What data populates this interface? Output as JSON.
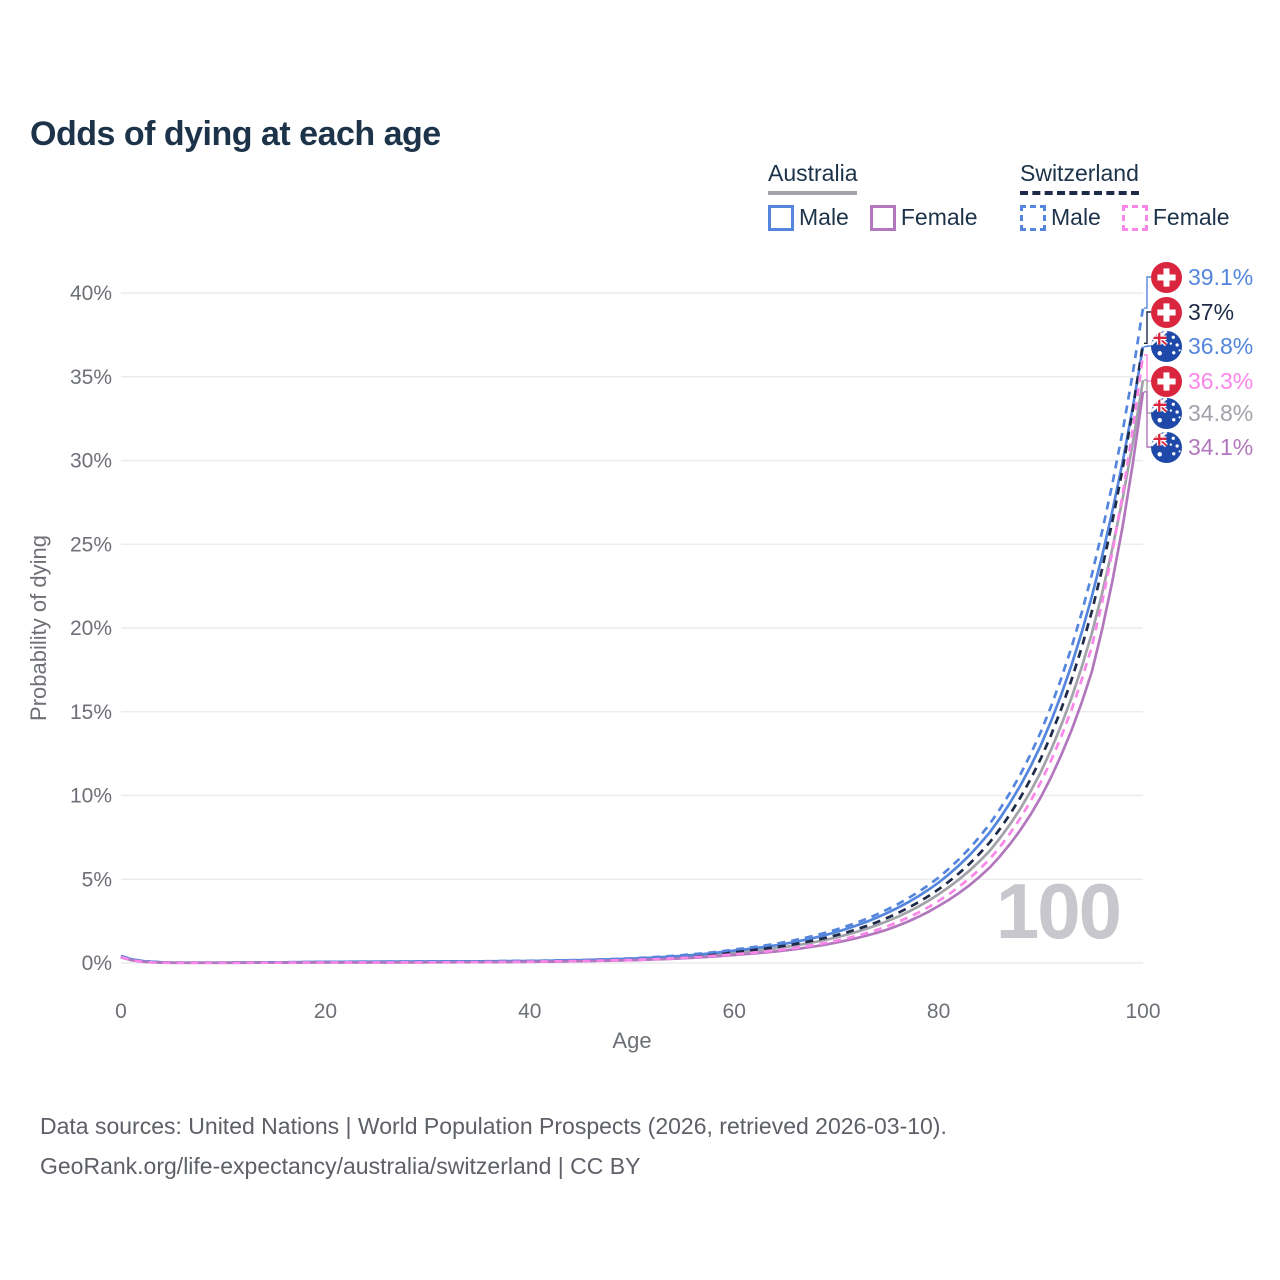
{
  "title": "Odds of dying at each age",
  "colors": {
    "title_text": "#1d3349",
    "axis_text": "#6d7076",
    "gridline": "#ececef",
    "footer_text": "#5d6066",
    "watermark": "#c7c7cd",
    "australia_male": "#5586dd",
    "australia_female": "#b277bd",
    "australia_total": "#a2a2aa",
    "switzerland_male": "#5586dd",
    "switzerland_female": "#fb86e9",
    "switzerland_total": "#1e2b48",
    "swiss_flag_red": "#d9253d",
    "australia_flag_blue": "#1f49a8"
  },
  "legend": {
    "groups": [
      {
        "id": "australia",
        "label": "Australia",
        "line_style": "solid",
        "line_color": "#a2a2aa",
        "items": [
          {
            "label": "Male",
            "color": "#5586dd",
            "dashed": false
          },
          {
            "label": "Female",
            "color": "#b277bd",
            "dashed": false
          }
        ]
      },
      {
        "id": "switzerland",
        "label": "Switzerland",
        "line_style": "dashed",
        "line_color": "#1e2b48",
        "items": [
          {
            "label": "Male",
            "color": "#5586dd",
            "dashed": true
          },
          {
            "label": "Female",
            "color": "#fb86e9",
            "dashed": true
          }
        ]
      }
    ]
  },
  "chart_data": {
    "type": "line",
    "title": "Odds of dying at each age",
    "xlabel": "Age",
    "ylabel": "Probability of dying",
    "xlim": [
      0,
      100
    ],
    "ylim": [
      0,
      40
    ],
    "x_ticks": [
      0,
      20,
      40,
      60,
      80,
      100
    ],
    "y_tick_values": [
      0,
      5,
      10,
      15,
      20,
      25,
      30,
      35,
      40
    ],
    "y_tick_suffix": "%",
    "grid": "horizontal",
    "legend_position": "top-right",
    "age_watermark": "100",
    "x": [
      0,
      5,
      10,
      15,
      20,
      25,
      30,
      35,
      40,
      45,
      50,
      55,
      60,
      65,
      70,
      75,
      80,
      85,
      90,
      95,
      100
    ],
    "series": [
      {
        "id": "ch_male",
        "name": "Switzerland Male",
        "country": "Switzerland",
        "sex": "Male",
        "flag": "ch",
        "color": "#5586dd",
        "dashed": true,
        "end_label": "39.1%",
        "values": [
          0.42,
          0.02,
          0.02,
          0.04,
          0.07,
          0.08,
          0.09,
          0.1,
          0.13,
          0.18,
          0.28,
          0.47,
          0.8,
          1.25,
          2.0,
          3.2,
          5.1,
          8.3,
          13.8,
          23.2,
          39.1
        ]
      },
      {
        "id": "ch_total",
        "name": "Switzerland",
        "country": "Switzerland",
        "sex": "Both",
        "flag": "ch",
        "color": "#1e2b48",
        "dashed": true,
        "end_label": "37%",
        "values": [
          0.4,
          0.02,
          0.02,
          0.03,
          0.05,
          0.06,
          0.07,
          0.08,
          0.11,
          0.15,
          0.23,
          0.4,
          0.66,
          1.03,
          1.66,
          2.7,
          4.4,
          7.2,
          12.2,
          21.0,
          37.0
        ]
      },
      {
        "id": "au_male",
        "name": "Australia Male",
        "country": "Australia",
        "sex": "Male",
        "flag": "au",
        "color": "#5586dd",
        "dashed": false,
        "end_label": "36.8%",
        "values": [
          0.4,
          0.02,
          0.02,
          0.04,
          0.07,
          0.08,
          0.09,
          0.1,
          0.12,
          0.17,
          0.26,
          0.43,
          0.74,
          1.15,
          1.85,
          3.0,
          4.8,
          7.8,
          13.0,
          21.9,
          36.8
        ]
      },
      {
        "id": "ch_female",
        "name": "Switzerland Female",
        "country": "Switzerland",
        "sex": "Female",
        "flag": "ch",
        "color": "#fb86e9",
        "dashed": true,
        "end_label": "36.3%",
        "values": [
          0.36,
          0.01,
          0.01,
          0.02,
          0.03,
          0.03,
          0.04,
          0.05,
          0.08,
          0.12,
          0.18,
          0.31,
          0.52,
          0.82,
          1.33,
          2.2,
          3.7,
          6.2,
          10.8,
          18.9,
          36.3
        ]
      },
      {
        "id": "au_total",
        "name": "Australia",
        "country": "Australia",
        "sex": "Both",
        "flag": "au",
        "color": "#a2a2aa",
        "dashed": false,
        "end_label": "34.8%",
        "values": [
          0.37,
          0.02,
          0.02,
          0.03,
          0.05,
          0.06,
          0.07,
          0.08,
          0.1,
          0.14,
          0.21,
          0.36,
          0.61,
          0.95,
          1.53,
          2.5,
          4.1,
          6.7,
          11.4,
          19.7,
          34.8
        ]
      },
      {
        "id": "au_female",
        "name": "Australia Female",
        "country": "Australia",
        "sex": "Female",
        "flag": "au",
        "color": "#b277bd",
        "dashed": false,
        "end_label": "34.1%",
        "values": [
          0.34,
          0.01,
          0.01,
          0.02,
          0.03,
          0.03,
          0.04,
          0.05,
          0.07,
          0.11,
          0.17,
          0.28,
          0.48,
          0.75,
          1.22,
          2.0,
          3.4,
          5.7,
          9.9,
          17.4,
          34.1
        ]
      }
    ]
  },
  "footer": {
    "line1": "Data sources: United Nations | World Population Prospects (2026, retrieved 2026-03-10).",
    "line2": "GeoRank.org/life-expectancy/australia/switzerland | CC BY"
  }
}
